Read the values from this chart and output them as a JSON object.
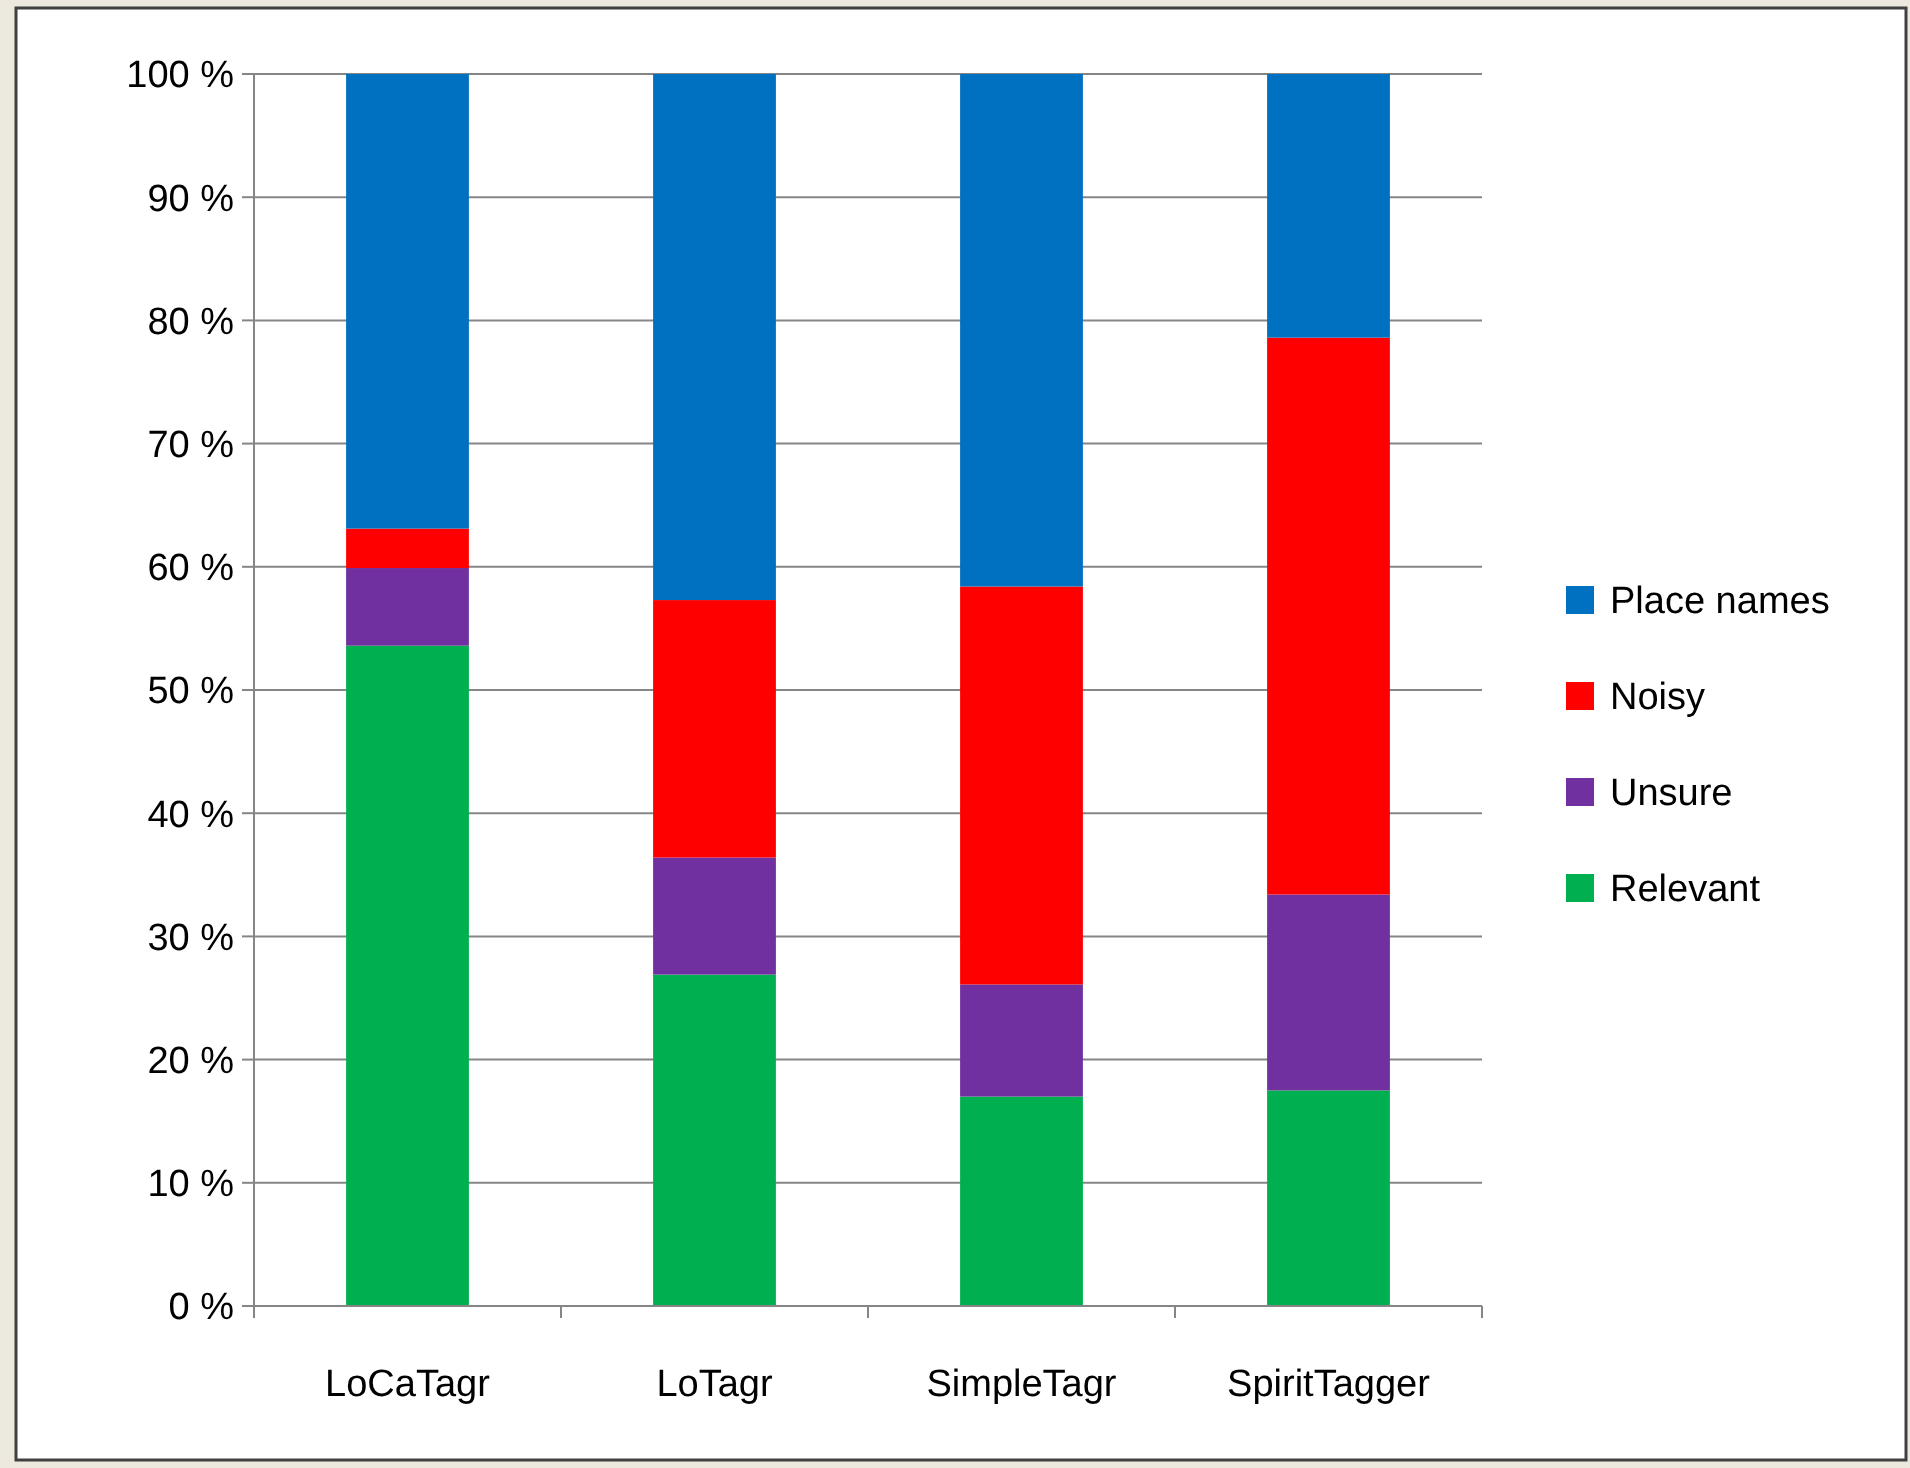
{
  "chart_data": {
    "type": "bar",
    "stacked": true,
    "categories": [
      "LoCaTagr",
      "LoTagr",
      "SimpleTagr",
      "SpiritTagger"
    ],
    "series": [
      {
        "name": "Relevant",
        "color": "#00b050",
        "values": [
          53.6,
          26.9,
          17.0,
          17.5
        ]
      },
      {
        "name": "Unsure",
        "color": "#7030a0",
        "values": [
          6.3,
          9.5,
          9.1,
          15.9
        ]
      },
      {
        "name": "Noisy",
        "color": "#ff0000",
        "values": [
          3.2,
          20.9,
          32.3,
          45.2
        ]
      },
      {
        "name": "Place names",
        "color": "#0070c0",
        "values": [
          36.9,
          42.7,
          41.6,
          21.4
        ]
      }
    ],
    "ylim": [
      0,
      100
    ],
    "yticks": [
      {
        "value": 0,
        "label": "0 %"
      },
      {
        "value": 10,
        "label": "10 %"
      },
      {
        "value": 20,
        "label": "20 %"
      },
      {
        "value": 30,
        "label": "30 %"
      },
      {
        "value": 40,
        "label": "40 %"
      },
      {
        "value": 50,
        "label": "50 %"
      },
      {
        "value": 60,
        "label": "60 %"
      },
      {
        "value": 70,
        "label": "70 %"
      },
      {
        "value": 80,
        "label": "80 %"
      },
      {
        "value": 90,
        "label": "90 %"
      },
      {
        "value": 100,
        "label": "100 %"
      }
    ],
    "grid": "y",
    "legend": "right"
  }
}
